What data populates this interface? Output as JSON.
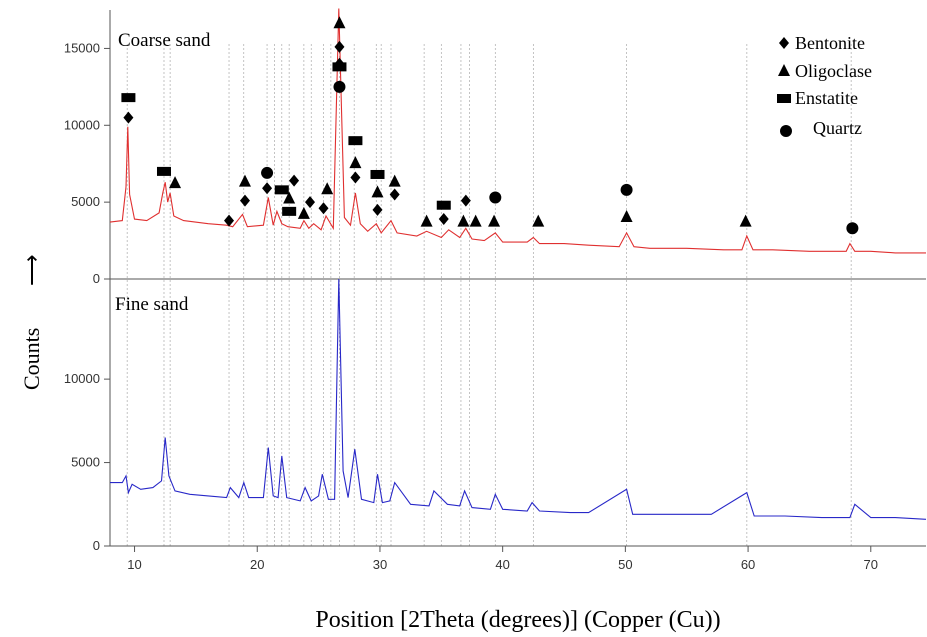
{
  "chart_data": [
    {
      "type": "line",
      "panel_label": "Coarse sand",
      "color": "#e03030",
      "xlim": [
        8,
        74.5
      ],
      "ylim": [
        0,
        17500
      ],
      "yticks": [
        0,
        5000,
        10000,
        15000
      ],
      "ytick_labels": [
        "0",
        "5000",
        "10000",
        "15000"
      ],
      "series": [
        {
          "x": [
            8.0,
            9.0,
            9.3,
            9.45,
            9.6,
            10.0,
            11.0,
            12.0,
            12.3,
            12.5,
            12.7,
            12.9,
            13.2,
            14.0,
            16.0,
            17.5,
            18.0,
            18.8,
            19.2,
            20.5,
            20.9,
            21.3,
            21.6,
            22.0,
            22.5,
            23.5,
            23.8,
            24.2,
            24.6,
            25.2,
            25.6,
            26.2,
            26.65,
            27.1,
            27.6,
            28.0,
            28.4,
            29.0,
            29.7,
            30.1,
            30.9,
            31.4,
            33.0,
            33.8,
            35.0,
            35.6,
            36.5,
            37.0,
            37.5,
            38.5,
            39.4,
            40.0,
            42.0,
            42.5,
            43.0,
            45.0,
            47.0,
            49.5,
            50.1,
            50.7,
            52.0,
            55.0,
            58.0,
            59.5,
            59.9,
            60.4,
            62.0,
            65.0,
            68.0,
            68.3,
            68.7,
            70.0,
            72.0,
            74.5
          ],
          "y": [
            3700,
            3800,
            6000,
            9900,
            5500,
            3900,
            3800,
            4300,
            5600,
            6300,
            5000,
            5600,
            4100,
            3800,
            3600,
            3500,
            3400,
            4200,
            3400,
            3500,
            5300,
            3500,
            4400,
            3600,
            3400,
            3300,
            3800,
            3300,
            3600,
            3200,
            4100,
            3300,
            17600,
            4000,
            3500,
            5600,
            3600,
            3100,
            3600,
            3000,
            3800,
            3000,
            2800,
            3100,
            2700,
            3200,
            2700,
            3300,
            2600,
            2500,
            3000,
            2400,
            2400,
            2700,
            2300,
            2300,
            2200,
            2100,
            3000,
            2100,
            2000,
            2000,
            1900,
            1900,
            2800,
            1900,
            1900,
            1800,
            1800,
            2300,
            1800,
            1800,
            1700,
            1700
          ]
        }
      ],
      "annotations": [
        {
          "marker": "Bentonite",
          "x": 9.5,
          "y": 10500
        },
        {
          "marker": "Enstatite",
          "x": 9.5,
          "y": 11800
        },
        {
          "marker": "Enstatite",
          "x": 12.4,
          "y": 7000
        },
        {
          "marker": "Oligoclase",
          "x": 13.3,
          "y": 6300
        },
        {
          "marker": "Bentonite",
          "x": 17.7,
          "y": 3800
        },
        {
          "marker": "Bentonite",
          "x": 19.0,
          "y": 5100
        },
        {
          "marker": "Oligoclase",
          "x": 19.0,
          "y": 6400
        },
        {
          "marker": "Bentonite",
          "x": 20.8,
          "y": 5900
        },
        {
          "marker": "Quartz",
          "x": 20.8,
          "y": 6900
        },
        {
          "marker": "Enstatite",
          "x": 22.0,
          "y": 5800
        },
        {
          "marker": "Oligoclase",
          "x": 22.6,
          "y": 5300
        },
        {
          "marker": "Enstatite",
          "x": 22.6,
          "y": 4400
        },
        {
          "marker": "Bentonite",
          "x": 23.0,
          "y": 6400
        },
        {
          "marker": "Oligoclase",
          "x": 23.8,
          "y": 4300
        },
        {
          "marker": "Bentonite",
          "x": 24.3,
          "y": 5000
        },
        {
          "marker": "Bentonite",
          "x": 25.4,
          "y": 4600
        },
        {
          "marker": "Oligoclase",
          "x": 25.7,
          "y": 5900
        },
        {
          "marker": "Oligoclase",
          "x": 26.7,
          "y": 16700
        },
        {
          "marker": "Bentonite",
          "x": 26.7,
          "y": 15100
        },
        {
          "marker": "Bentonite",
          "x": 26.7,
          "y": 14000
        },
        {
          "marker": "Enstatite",
          "x": 26.7,
          "y": 13800
        },
        {
          "marker": "Quartz",
          "x": 26.7,
          "y": 12500
        },
        {
          "marker": "Enstatite",
          "x": 28.0,
          "y": 9000
        },
        {
          "marker": "Oligoclase",
          "x": 28.0,
          "y": 7600
        },
        {
          "marker": "Bentonite",
          "x": 28.0,
          "y": 6600
        },
        {
          "marker": "Enstatite",
          "x": 29.8,
          "y": 6800
        },
        {
          "marker": "Oligoclase",
          "x": 29.8,
          "y": 5700
        },
        {
          "marker": "Bentonite",
          "x": 29.8,
          "y": 4500
        },
        {
          "marker": "Oligoclase",
          "x": 31.2,
          "y": 6400
        },
        {
          "marker": "Bentonite",
          "x": 31.2,
          "y": 5500
        },
        {
          "marker": "Oligoclase",
          "x": 33.8,
          "y": 3800
        },
        {
          "marker": "Enstatite",
          "x": 35.2,
          "y": 4800
        },
        {
          "marker": "Bentonite",
          "x": 35.2,
          "y": 3900
        },
        {
          "marker": "Oligoclase",
          "x": 36.8,
          "y": 3800
        },
        {
          "marker": "Bentonite",
          "x": 37.0,
          "y": 5100
        },
        {
          "marker": "Oligoclase",
          "x": 37.8,
          "y": 3800
        },
        {
          "marker": "Oligoclase",
          "x": 39.3,
          "y": 3800
        },
        {
          "marker": "Quartz",
          "x": 39.4,
          "y": 5300
        },
        {
          "marker": "Oligoclase",
          "x": 42.9,
          "y": 3800
        },
        {
          "marker": "Quartz",
          "x": 50.1,
          "y": 5800
        },
        {
          "marker": "Oligoclase",
          "x": 50.1,
          "y": 4100
        },
        {
          "marker": "Oligoclase",
          "x": 59.8,
          "y": 3800
        },
        {
          "marker": "Quartz",
          "x": 68.5,
          "y": 3300
        }
      ]
    },
    {
      "type": "line",
      "panel_label": "Fine sand",
      "color": "#2828c8",
      "xlim": [
        8,
        74.5
      ],
      "ylim": [
        0,
        16000
      ],
      "yticks": [
        0,
        5000,
        10000
      ],
      "ytick_labels": [
        "0",
        "5000",
        "10000"
      ],
      "xticks": [
        10,
        20,
        30,
        40,
        50,
        60,
        70
      ],
      "xtick_labels": [
        "10",
        "20",
        "30",
        "40",
        "50",
        "60",
        "70"
      ],
      "series": [
        {
          "x": [
            8.0,
            9.0,
            9.3,
            9.5,
            9.8,
            10.5,
            11.5,
            12.2,
            12.5,
            12.8,
            13.3,
            14.5,
            16.0,
            17.5,
            17.8,
            18.5,
            18.9,
            19.3,
            20.5,
            20.9,
            21.3,
            21.7,
            22.0,
            22.4,
            23.5,
            23.9,
            24.4,
            25.0,
            25.3,
            25.8,
            26.3,
            26.65,
            27.0,
            27.4,
            27.95,
            28.5,
            29.5,
            29.8,
            30.2,
            30.8,
            31.2,
            32.5,
            34.0,
            34.4,
            35.5,
            36.5,
            36.9,
            37.5,
            39.0,
            39.4,
            40.0,
            42.0,
            42.4,
            43.0,
            45.5,
            47.0,
            50.1,
            50.6,
            52.0,
            55.0,
            57.0,
            59.9,
            60.5,
            63.0,
            66.0,
            68.3,
            68.7,
            70.0,
            72.0,
            74.5
          ],
          "y": [
            3800,
            3800,
            4200,
            3200,
            3700,
            3400,
            3500,
            3900,
            6500,
            4200,
            3300,
            3100,
            3000,
            2900,
            3500,
            2900,
            3800,
            2900,
            2900,
            5900,
            3000,
            2900,
            5400,
            2900,
            2700,
            3500,
            2700,
            3000,
            4300,
            2800,
            2800,
            16000,
            4500,
            2900,
            5800,
            2800,
            2600,
            4300,
            2600,
            2700,
            3800,
            2500,
            2400,
            3300,
            2500,
            2400,
            3300,
            2300,
            2200,
            3100,
            2200,
            2100,
            2600,
            2100,
            2000,
            2000,
            3400,
            1900,
            1900,
            1900,
            1900,
            3200,
            1800,
            1800,
            1700,
            1700,
            2500,
            1700,
            1700,
            1600
          ]
        }
      ]
    }
  ],
  "legend": {
    "position": "top-right",
    "items": [
      {
        "symbol": "diamond",
        "label": "Bentonite"
      },
      {
        "symbol": "triangle",
        "label": "Oligoclase"
      },
      {
        "symbol": "square",
        "label": "Enstatite"
      },
      {
        "symbol": "circle",
        "label": "Quartz"
      }
    ]
  },
  "axes": {
    "ylabel": "Counts",
    "ylabel_arrow": "⟶",
    "xlabel": "Position [2Theta (degrees)] (Copper (Cu))"
  },
  "reference_lines_x": [
    9.4,
    12.4,
    12.9,
    17.7,
    18.9,
    20.8,
    21.4,
    22.0,
    22.6,
    23.8,
    24.4,
    25.4,
    26.0,
    26.7,
    27.9,
    29.7,
    30.1,
    30.9,
    33.6,
    35.0,
    36.6,
    37.3,
    39.4,
    42.5,
    50.1,
    59.9,
    68.4
  ]
}
